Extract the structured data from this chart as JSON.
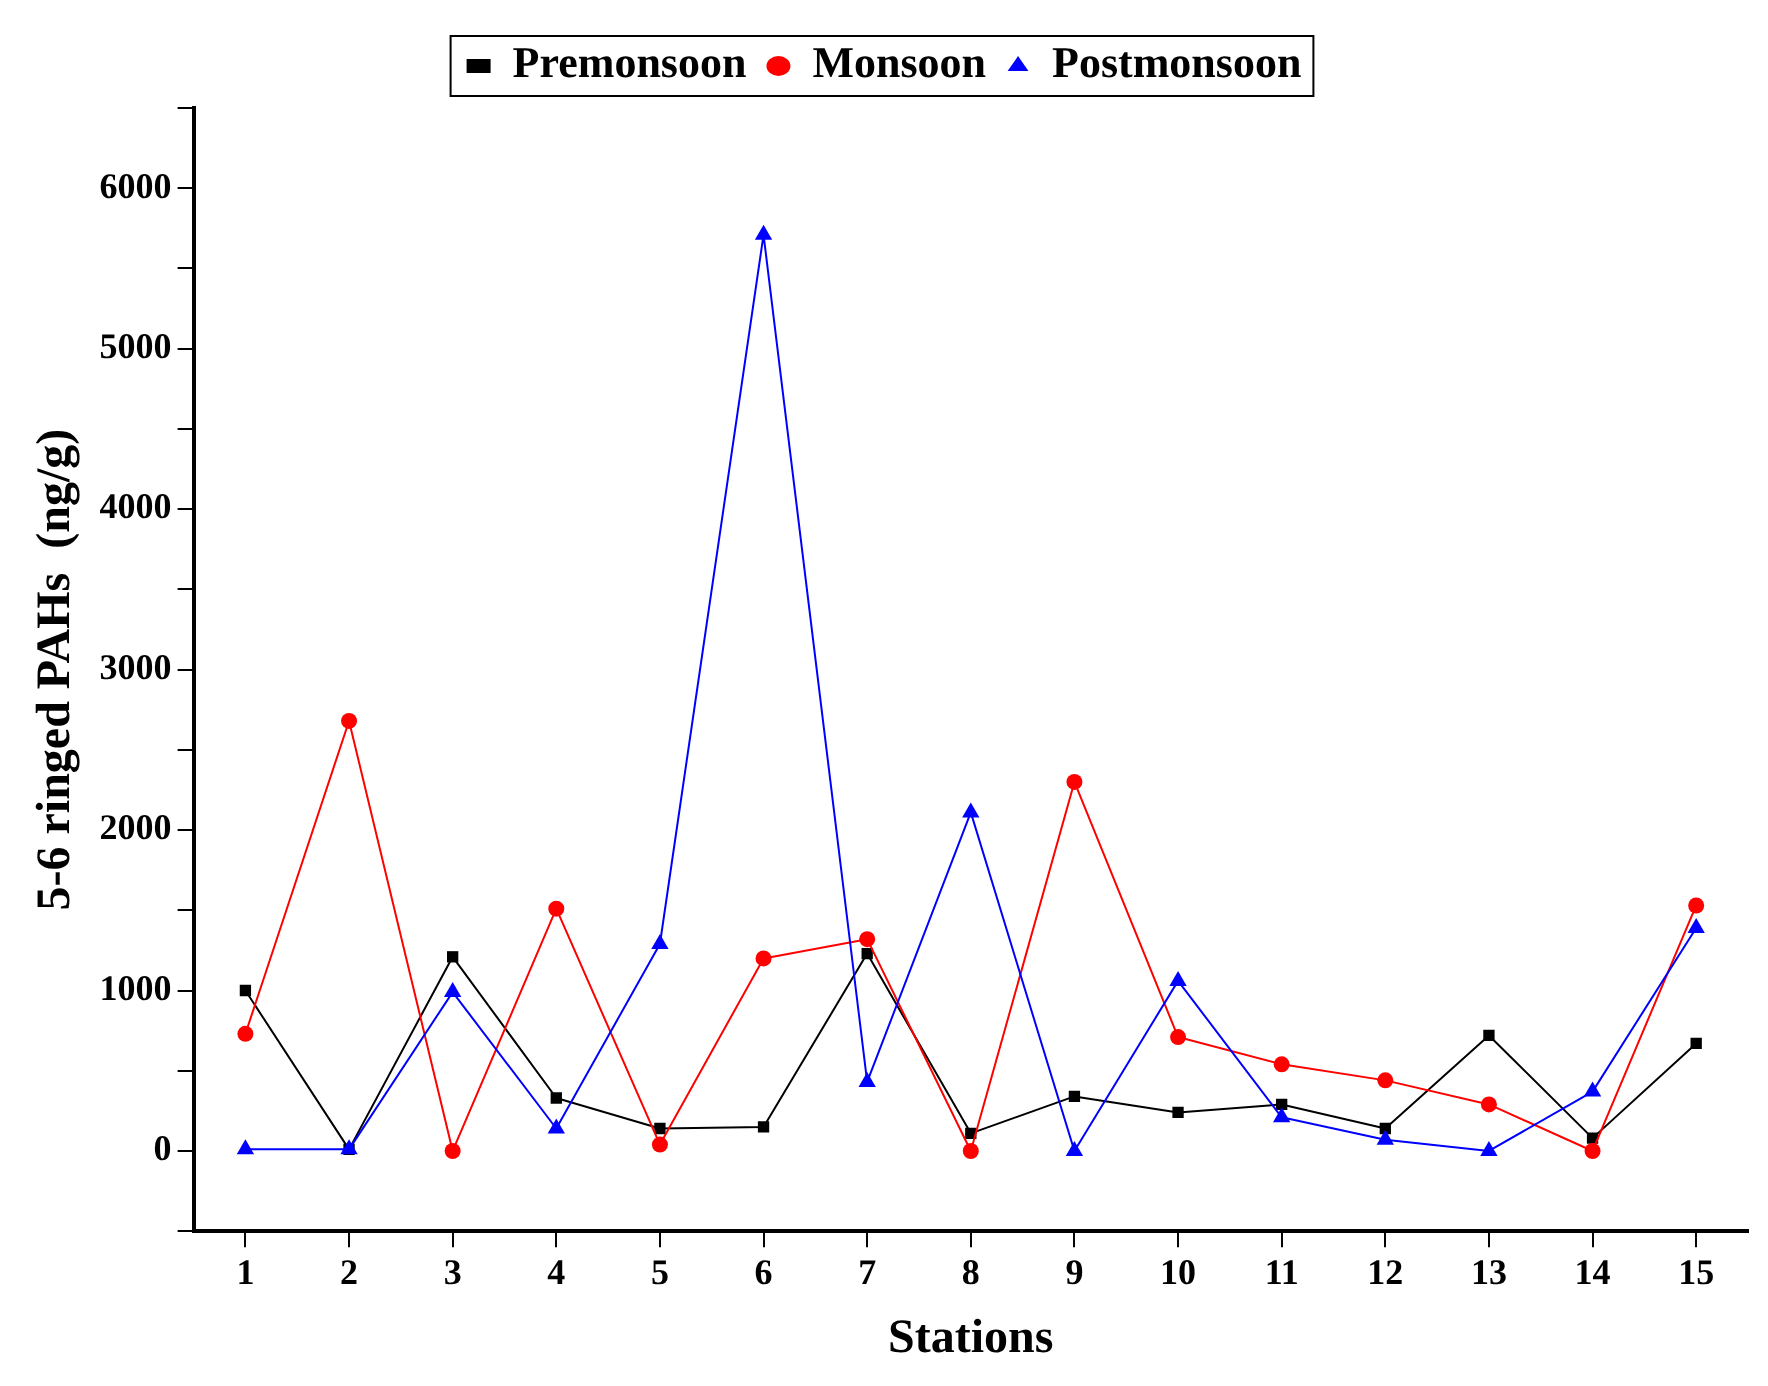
{
  "chart_data": {
    "type": "line",
    "xlabel": "Stations",
    "ylabel": "5-6 ringed PAHs  (ng/g)",
    "x": [
      1,
      2,
      3,
      4,
      5,
      6,
      7,
      8,
      9,
      10,
      11,
      12,
      13,
      14,
      15
    ],
    "series": [
      {
        "name": "Premonsoon",
        "color": "#000000",
        "marker": "square",
        "values": [
          1000,
          10,
          1210,
          330,
          140,
          150,
          1230,
          110,
          340,
          240,
          290,
          140,
          720,
          80,
          670
        ]
      },
      {
        "name": "Monsoon",
        "color": "#ff0000",
        "marker": "circle",
        "values": [
          730,
          2680,
          0,
          1510,
          40,
          1200,
          1320,
          0,
          2300,
          710,
          540,
          440,
          290,
          0,
          1530
        ]
      },
      {
        "name": "Postmonsoon",
        "color": "#0000ff",
        "marker": "triangle",
        "values": [
          10,
          10,
          990,
          140,
          1290,
          5710,
          430,
          2110,
          0,
          1060,
          210,
          70,
          0,
          370,
          1390
        ]
      }
    ],
    "xlim": [
      0.5,
      15.5
    ],
    "xticks": [
      1,
      2,
      3,
      4,
      5,
      6,
      7,
      8,
      9,
      10,
      11,
      12,
      13,
      14,
      15
    ],
    "ylim": [
      -500,
      6500
    ],
    "yticks": [
      {
        "value": -500,
        "label": null
      },
      0,
      {
        "value": 500,
        "label": null
      },
      1000,
      {
        "value": 1500,
        "label": null
      },
      2000,
      {
        "value": 2500,
        "label": null
      },
      3000,
      {
        "value": 3500,
        "label": null
      },
      4000,
      {
        "value": 4500,
        "label": null
      },
      5000,
      {
        "value": 5500,
        "label": null
      },
      6000,
      {
        "value": 6500,
        "label": null
      }
    ],
    "grid": false,
    "legend": "top",
    "line_style": "solid"
  }
}
